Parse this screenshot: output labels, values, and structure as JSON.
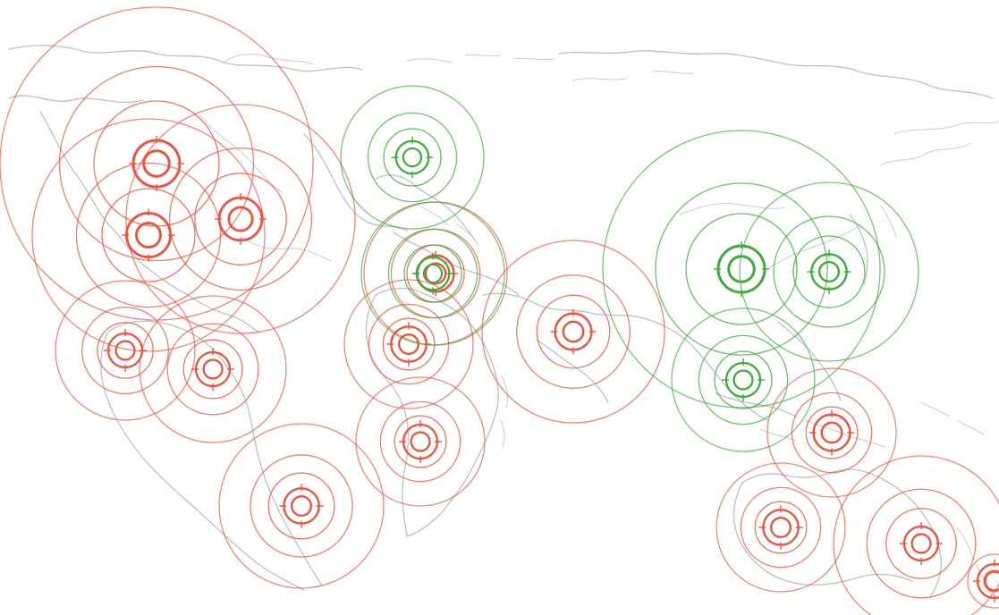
{
  "map": {
    "colors": {
      "background": "#ffffff",
      "coastline": "#b9c0c8",
      "negative": "#f0533d",
      "positive": "#3dac3a"
    },
    "legend": [],
    "markers": [
      {
        "id": "marker-1",
        "status": "negative",
        "weight": 1.0
      },
      {
        "id": "marker-2",
        "status": "negative",
        "weight": 0.9
      },
      {
        "id": "marker-3",
        "status": "negative",
        "weight": 0.85
      },
      {
        "id": "marker-4",
        "status": "negative",
        "weight": 0.5
      },
      {
        "id": "marker-5",
        "status": "negative",
        "weight": 0.5
      },
      {
        "id": "marker-6",
        "status": "negative",
        "weight": 0.55
      },
      {
        "id": "marker-7",
        "status": "negative",
        "weight": 0.55
      },
      {
        "id": "marker-8",
        "status": "negative",
        "weight": 0.5
      },
      {
        "id": "marker-9",
        "status": "negative",
        "weight": 0.6
      },
      {
        "id": "marker-10",
        "status": "negative",
        "weight": 0.6
      },
      {
        "id": "marker-11",
        "status": "negative",
        "weight": 0.55
      },
      {
        "id": "marker-12",
        "status": "negative",
        "weight": 0.5
      },
      {
        "id": "marker-13",
        "status": "negative",
        "weight": 0.6
      },
      {
        "id": "marker-14",
        "status": "negative",
        "weight": 0.5
      },
      {
        "id": "marker-15",
        "status": "positive",
        "weight": 0.45
      },
      {
        "id": "marker-16",
        "status": "positive",
        "weight": 0.45
      },
      {
        "id": "marker-17",
        "status": "positive",
        "weight": 1.0
      },
      {
        "id": "marker-18",
        "status": "positive",
        "weight": 0.55
      },
      {
        "id": "marker-19",
        "status": "positive",
        "weight": 0.5
      }
    ]
  }
}
